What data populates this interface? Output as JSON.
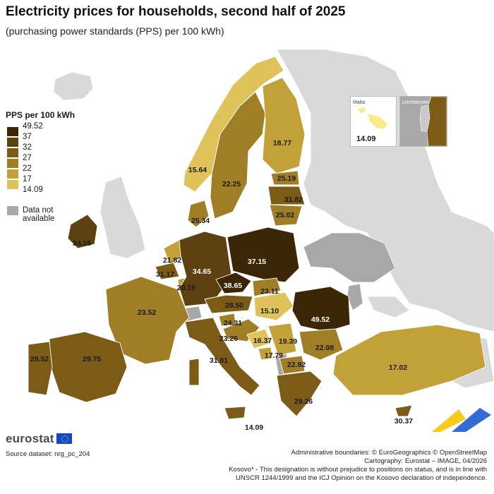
{
  "header": {
    "title": "Electricity prices for households, second half of 2025",
    "subtitle": "(purchasing power standards (PPS) per 100 kWh)"
  },
  "legend": {
    "title": "PPS per 100 kWh",
    "breaks": [
      "49.52",
      "37",
      "32",
      "27",
      "22",
      "17",
      "14.09"
    ],
    "colors": [
      "#3b2605",
      "#5e4110",
      "#7c5b17",
      "#a07e25",
      "#c2a238",
      "#dfc25a",
      "#fbe98a"
    ],
    "na_label": "Data not available",
    "na_color": "#a8a8a8"
  },
  "insets": {
    "malta": {
      "label": "Malta",
      "value": "14.09"
    },
    "liechtenstein": {
      "label": "Liechtenstein"
    }
  },
  "countries": [
    {
      "name": "Ireland",
      "value": "34.15"
    },
    {
      "name": "Norway",
      "value": "15.64"
    },
    {
      "name": "Sweden",
      "value": "22.25"
    },
    {
      "name": "Finland",
      "value": "18.77"
    },
    {
      "name": "Estonia",
      "value": "25.19"
    },
    {
      "name": "Latvia",
      "value": "31.82"
    },
    {
      "name": "Lithuania",
      "value": "25.02"
    },
    {
      "name": "Denmark",
      "value": "25.34"
    },
    {
      "name": "Netherlands",
      "value": "21.82"
    },
    {
      "name": "Belgium",
      "value": "31.17"
    },
    {
      "name": "Luxembourg",
      "value": "20.19"
    },
    {
      "name": "Germany",
      "value": "34.65"
    },
    {
      "name": "Poland",
      "value": "37.15"
    },
    {
      "name": "Czechia",
      "value": "38.65"
    },
    {
      "name": "Slovakia",
      "value": "23.11"
    },
    {
      "name": "Austria",
      "value": "28.50"
    },
    {
      "name": "Hungary",
      "value": "15.10"
    },
    {
      "name": "Romania",
      "value": "49.52"
    },
    {
      "name": "Slovenia",
      "value": "24.31"
    },
    {
      "name": "Croatia",
      "value": "23.26"
    },
    {
      "name": "Bosnia and Herzegovina",
      "value": "16.37"
    },
    {
      "name": "Serbia",
      "value": "19.39"
    },
    {
      "name": "Montenegro",
      "value": "17.79"
    },
    {
      "name": "Bulgaria",
      "value": "22.08"
    },
    {
      "name": "North Macedonia",
      "value": "22.92"
    },
    {
      "name": "Greece",
      "value": "29.26"
    },
    {
      "name": "France",
      "value": "23.52"
    },
    {
      "name": "Spain",
      "value": "29.75"
    },
    {
      "name": "Portugal",
      "value": "29.52"
    },
    {
      "name": "Italy",
      "value": "31.01"
    },
    {
      "name": "Malta",
      "value": "14.09"
    },
    {
      "name": "Turkey",
      "value": "17.02"
    },
    {
      "name": "Cyprus",
      "value": "30.37"
    }
  ],
  "footer": {
    "logo": "eurostat",
    "source": "Source dataset: nrg_pc_204",
    "boundaries": "Administrative boundaries: © EuroGeographics © OpenStreetMap",
    "cartography": "Cartography: Eurostat – IMAGE, 04/2026",
    "kosovo_line1": "Kosovo* - This designation is without prejudice to positions on status, and is in line with",
    "kosovo_line2": "UNSCR 1244/1999 and the ICJ Opinion on the Kosovo declaration of independence."
  }
}
